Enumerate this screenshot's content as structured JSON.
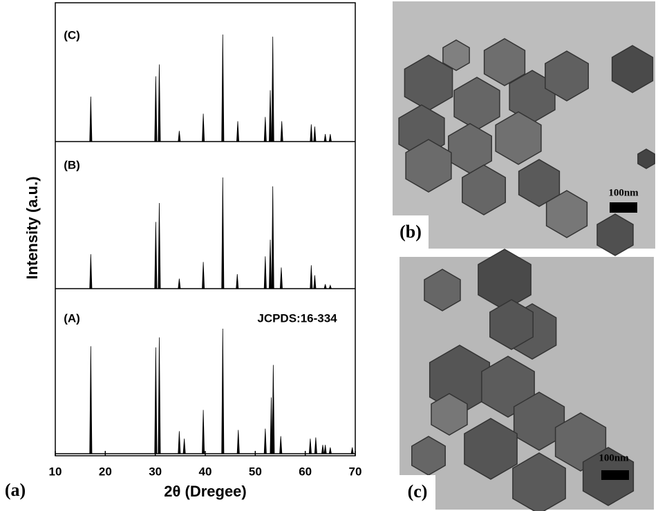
{
  "chart_data": {
    "type": "stick",
    "xlabel": "2θ (Dregee)",
    "ylabel": "Intensity (a.u.)",
    "xlim": [
      10,
      70
    ],
    "xticks": [
      10,
      20,
      30,
      40,
      50,
      60,
      70
    ],
    "ylim": [
      0,
      100
    ],
    "annotation": "JCPDS:16-334",
    "panel_label": "(a)",
    "color": "#000000",
    "series": [
      {
        "name": "(A)",
        "x": [
          17.1,
          30.1,
          30.8,
          34.8,
          35.8,
          39.6,
          43.5,
          46.6,
          52.0,
          53.2,
          53.6,
          55.1,
          61.0,
          62.1,
          63.5,
          64.0,
          65.0,
          69.4
        ],
        "values": [
          86,
          85,
          93,
          18,
          12,
          35,
          100,
          19,
          20,
          45,
          71,
          14,
          12,
          13,
          7,
          7,
          5,
          5
        ]
      },
      {
        "name": "(B)",
        "x": [
          17.1,
          30.1,
          30.8,
          34.8,
          39.6,
          43.5,
          46.4,
          52.0,
          53.0,
          53.5,
          55.2,
          61.2,
          61.9,
          64.0,
          65.0
        ],
        "values": [
          31,
          60,
          77,
          9,
          24,
          100,
          13,
          29,
          44,
          92,
          19,
          21,
          12,
          4,
          3
        ]
      },
      {
        "name": "(C)",
        "x": [
          17.1,
          30.1,
          30.8,
          34.8,
          39.6,
          43.5,
          46.5,
          52.0,
          53.0,
          53.5,
          55.3,
          61.2,
          61.9,
          64.0,
          65.0
        ],
        "values": [
          42,
          61,
          72,
          10,
          26,
          100,
          19,
          23,
          48,
          98,
          19,
          16,
          14,
          7,
          7
        ]
      }
    ]
  },
  "images": [
    {
      "panel_label": "(b)",
      "scale_bar": "100nm"
    },
    {
      "panel_label": "(c)",
      "scale_bar": "100nm"
    }
  ]
}
